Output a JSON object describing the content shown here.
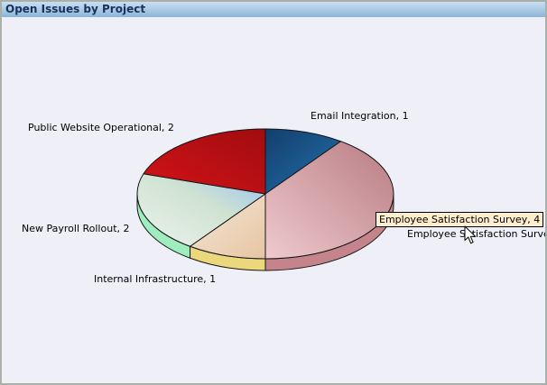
{
  "window": {
    "title": "Open Issues by Project",
    "title_color": "#16325E",
    "titlebar_gradient": [
      "#C9DEF0",
      "#8BB4D7"
    ],
    "background": "#EEEFF7",
    "border_color": "#A9AFA9"
  },
  "tooltip": {
    "text": "Employee Satisfaction Survey, 4",
    "background": "#FFEECE",
    "border_color": "#000000"
  },
  "chart_data": {
    "type": "pie",
    "style": "3d",
    "title": "Open Issues by Project",
    "total": 10,
    "legend_position": "none",
    "labels_on_chart": true,
    "start_angle_deg_from_north": 0,
    "direction": "clockwise",
    "slices": [
      {
        "label": "Email Integration",
        "value": 1,
        "display_label": "Email Integration, 1",
        "color_from": "#123F6B",
        "color_to": "#2470AE",
        "grad": "tlbr"
      },
      {
        "label": "Employee Satisfaction Survey",
        "value": 4,
        "display_label": "Employee Satisfaction Surve",
        "color_from": "#B87C82",
        "color_to": "#EECACE",
        "grad": "trbl",
        "rim_color": "#C5838C"
      },
      {
        "label": "Internal Infrastructure",
        "value": 1,
        "display_label": "Internal Infrastructure, 1",
        "color_from": "#F4E7D9",
        "color_to": "#E7C5A2",
        "grad": "tlbr",
        "rim_color": "#EBD87C"
      },
      {
        "label": "New Payroll Rollout",
        "value": 2,
        "display_label": "New Payroll Rollout, 2",
        "stops": [
          {
            "o": 0,
            "c": "#C9DCCB"
          },
          {
            "o": 0.18,
            "c": "#AECFE5"
          },
          {
            "o": 0.42,
            "c": "#CFE2D1"
          },
          {
            "o": 1,
            "c": "#ECF3EE"
          }
        ],
        "grad": "trbl",
        "rim_color": "#9FEDBE"
      },
      {
        "label": "Public Website Operational",
        "value": 2,
        "display_label": "Public Website Operational, 2",
        "color_from": "#D41318",
        "color_to": "#A00C10",
        "grad": "bltr"
      }
    ]
  }
}
